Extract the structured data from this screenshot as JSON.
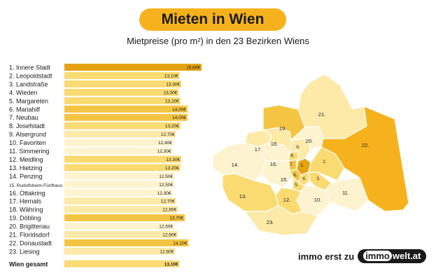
{
  "header": {
    "title": "Mieten in Wien",
    "subtitle": "Mietpreise (pro m²) in den 23 Bezirken Wiens"
  },
  "brand": {
    "tagline": "immo erst zu",
    "logo_prefix": "immo",
    "logo_suffix": "welt.at"
  },
  "colors": {
    "accent": "#f6b21c",
    "top_tier": "#e6a314",
    "high_tier": "#f4c542",
    "mid_tier": "#fadb72",
    "low_tier": "#fde9a8",
    "lowest_tier": "#fef3cf",
    "map_outline": "#c8c8c8"
  },
  "chart_data": {
    "type": "bar",
    "orientation": "horizontal",
    "title": "Mieten in Wien",
    "subtitle": "Mietpreise (pro m²) in den 23 Bezirken Wiens",
    "unit": "€",
    "categories": [
      "1. Innere Stadt",
      "2. Leopoldstadt",
      "3. Landstraße",
      "4. Wieden",
      "5. Margareten",
      "6. Mariahilf",
      "7. Neubau",
      "8. Josefstadt",
      "9. Alsergrund",
      "10. Favoriten",
      "11. Simmering",
      "12. Meidling",
      "13. Hietzing",
      "14. Penzing",
      "15. Rudolfsheim-Fünfhaus",
      "16. Ottakring",
      "17. Hernals",
      "18. Währing",
      "19. Döbling",
      "20. Brigittenau",
      "21. Floridsdorf",
      "22. Donaustadt",
      "23. Liesing",
      "Wien gesamt"
    ],
    "values": [
      15.6,
      13.1,
      13.3,
      13.0,
      13.2,
      14.0,
      14.0,
      13.2,
      12.7,
      12.4,
      12.3,
      13.3,
      13.2,
      12.5,
      12.5,
      12.3,
      12.7,
      12.9,
      13.7,
      12.5,
      12.9,
      14.1,
      12.6,
      13.1
    ],
    "value_labels": [
      "15,60€",
      "13,10€",
      "13,30€",
      "13,00€",
      "13,20€",
      "14,00€",
      "14,00€",
      "13,20€",
      "12,70€",
      "12,40€",
      "12,30€",
      "13,30€",
      "13,20€",
      "12,50€",
      "12,50€",
      "12,30€",
      "12,70€",
      "12,90€",
      "13,70€",
      "12,50€",
      "12,90€",
      "14,10€",
      "12,60€",
      "13,10€"
    ],
    "xlim": [
      0,
      15.6
    ],
    "grid": false,
    "legend": "none"
  },
  "map": {
    "district_labels": [
      "1.",
      "2.",
      "3.",
      "4.",
      "5.",
      "6.",
      "7.",
      "8.",
      "9.",
      "10.",
      "11.",
      "12.",
      "13.",
      "14.",
      "15.",
      "16.",
      "17.",
      "18.",
      "19.",
      "20.",
      "21.",
      "22.",
      "23."
    ]
  }
}
